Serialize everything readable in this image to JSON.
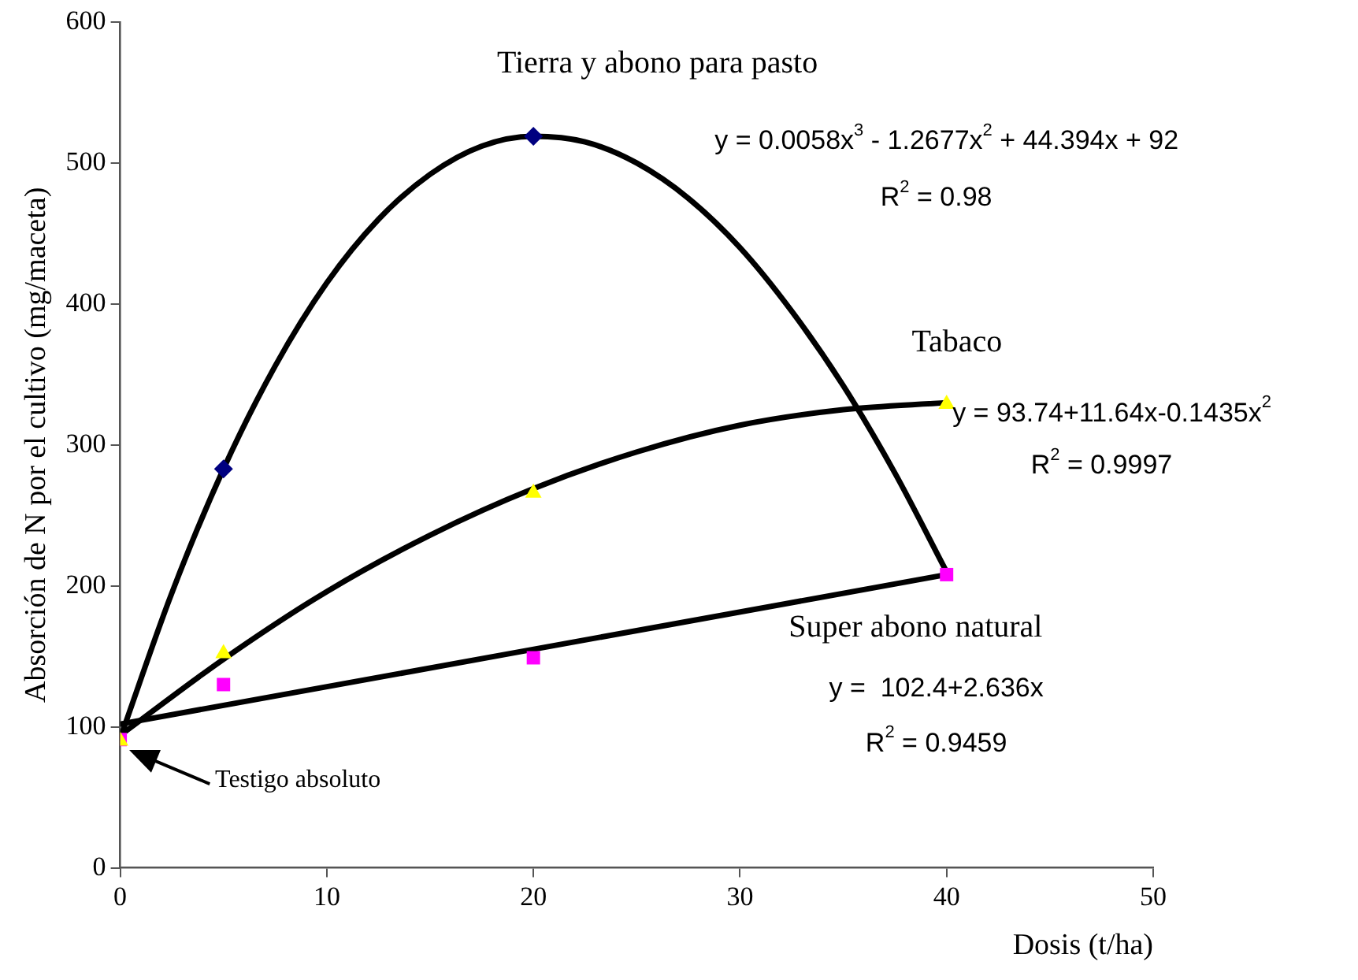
{
  "chart_data": {
    "type": "scatter",
    "xlabel": "Dosis (t/ha)",
    "ylabel": "Absorción de N por el cultivo (mg/maceta)",
    "xlim": [
      0,
      50
    ],
    "xticks": [
      0,
      10,
      20,
      30,
      40,
      50
    ],
    "ylim": [
      0,
      600
    ],
    "yticks": [
      0,
      100,
      200,
      300,
      400,
      500,
      600
    ],
    "grid": false,
    "legend": false,
    "series": [
      {
        "name": "Tierra y abono para pasto",
        "marker": "diamond",
        "color": "#000080",
        "x": [
          5,
          20
        ],
        "values": [
          283,
          519
        ]
      },
      {
        "name": "Tabaco",
        "marker": "triangle",
        "color": "#ffff00",
        "x": [
          0,
          5,
          20,
          40
        ],
        "values": [
          90,
          152,
          266,
          329
        ]
      },
      {
        "name": "Super abono natural",
        "marker": "square",
        "color": "#ff00ff",
        "x": [
          0,
          5,
          20,
          40
        ],
        "values": [
          91,
          130,
          149,
          208
        ]
      },
      {
        "type": "line",
        "marker": "none",
        "color": "#000000",
        "x": [
          0,
          2.5,
          5,
          7.5,
          10,
          12.5,
          15,
          17.5,
          20,
          22.5,
          25,
          27.5,
          30,
          32.5,
          35,
          37.5,
          40
        ],
        "values": [
          92,
          195,
          283,
          356,
          415,
          460,
          492,
          512,
          519,
          515,
          500,
          475,
          440,
          395,
          342,
          280,
          210
        ]
      },
      {
        "type": "line",
        "marker": "none",
        "color": "#000000",
        "x": [
          0,
          5,
          10,
          15,
          20,
          25,
          30,
          35,
          40
        ],
        "values": [
          94,
          148,
          196,
          236,
          269,
          295,
          314,
          325,
          330
        ]
      },
      {
        "type": "line",
        "marker": "none",
        "color": "#000000",
        "x": [
          0,
          40
        ],
        "values": [
          102,
          208
        ]
      }
    ],
    "annotations": [
      "y = 0.0058x$^{3}$ - 1.2677x$^{2}$ + 44.394x + 92",
      "R$^{2}$ = 0.98",
      "y = 93.74+11.64x-0.1435x$^{2}$",
      "R$^{2}$ = 0.9997",
      "y =  102.4+2.636x",
      "R$^{2}$ = 0.9459",
      "Testigo absoluto"
    ]
  }
}
